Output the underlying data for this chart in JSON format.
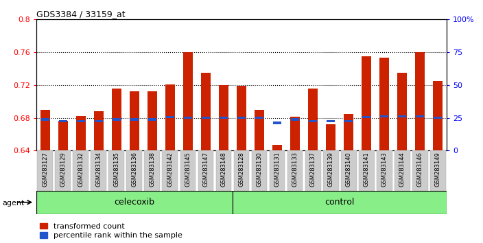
{
  "title": "GDS3384 / 33159_at",
  "samples": [
    "GSM283127",
    "GSM283129",
    "GSM283132",
    "GSM283134",
    "GSM283135",
    "GSM283136",
    "GSM283138",
    "GSM283142",
    "GSM283145",
    "GSM283147",
    "GSM283148",
    "GSM283128",
    "GSM283130",
    "GSM283131",
    "GSM283133",
    "GSM283137",
    "GSM283139",
    "GSM283140",
    "GSM283141",
    "GSM283143",
    "GSM283144",
    "GSM283146",
    "GSM283149"
  ],
  "bar_values": [
    0.69,
    0.676,
    0.682,
    0.688,
    0.716,
    0.712,
    0.712,
    0.721,
    0.76,
    0.735,
    0.72,
    0.719,
    0.69,
    0.647,
    0.681,
    0.716,
    0.672,
    0.685,
    0.755,
    0.753,
    0.735,
    0.76,
    0.725
  ],
  "blue_values": [
    0.678,
    0.676,
    0.676,
    0.676,
    0.678,
    0.678,
    0.678,
    0.681,
    0.68,
    0.68,
    0.68,
    0.68,
    0.68,
    0.674,
    0.678,
    0.676,
    0.676,
    0.676,
    0.681,
    0.682,
    0.682,
    0.682,
    0.68
  ],
  "group1_label": "celecoxib",
  "group2_label": "control",
  "group1_count": 11,
  "group2_count": 12,
  "ymin": 0.64,
  "ymax": 0.8,
  "yticks": [
    0.64,
    0.68,
    0.72,
    0.76,
    0.8
  ],
  "right_yticks": [
    0,
    25,
    50,
    75,
    100
  ],
  "right_ytick_labels": [
    "0",
    "25",
    "50",
    "75",
    "100%"
  ],
  "bar_color": "#cc2200",
  "blue_color": "#2255cc",
  "group_bg_color": "#88ee88",
  "agent_label": "agent",
  "legend1": "transformed count",
  "legend2": "percentile rank within the sample",
  "bar_width": 0.55
}
